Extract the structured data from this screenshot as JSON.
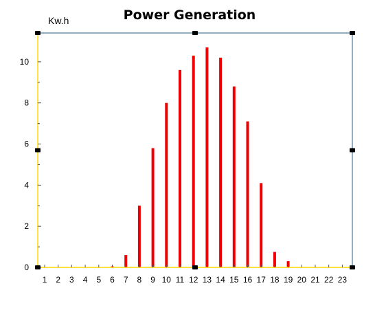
{
  "chart_data": {
    "type": "bar",
    "title": "Power Generation",
    "unit_label": "Kw.h",
    "xlabel": "",
    "ylabel": "Kw.h",
    "categories": [
      "1",
      "2",
      "3",
      "4",
      "5",
      "6",
      "7",
      "8",
      "9",
      "10",
      "11",
      "12",
      "13",
      "14",
      "15",
      "16",
      "17",
      "18",
      "19",
      "20",
      "21",
      "22",
      "23"
    ],
    "series": [
      {
        "values": [
          0,
          0,
          0,
          0,
          0,
          0.05,
          0.6,
          3.0,
          5.8,
          8.0,
          9.6,
          10.3,
          10.7,
          10.2,
          8.8,
          7.1,
          4.1,
          0.75,
          0.3,
          0,
          0,
          0,
          0
        ],
        "color": "#ee0000"
      }
    ],
    "yticks": [
      0,
      2,
      4,
      6,
      8,
      10
    ],
    "ylim": [
      0,
      11.4
    ],
    "grid": false,
    "legend": "none",
    "colors": {
      "bar": "#ee0000",
      "baseline": "#ffd700",
      "left_axis": "#ffd700",
      "frame": "#1f5f8b",
      "handle": "#000000",
      "text": "#000000"
    }
  }
}
